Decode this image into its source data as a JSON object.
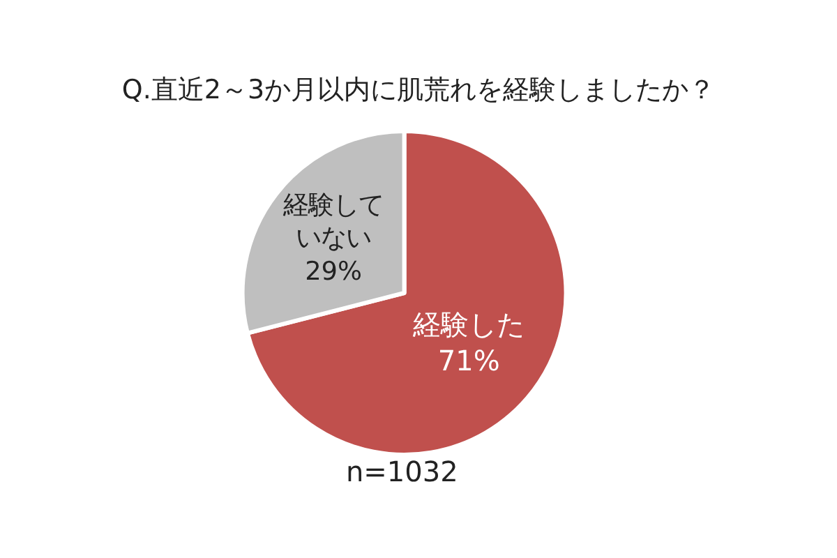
{
  "chart_data": {
    "type": "pie",
    "title": "Q.直近2～3か月以内に肌荒れを経験しましたか？",
    "categories": [
      "経験した",
      "経験していない"
    ],
    "values": [
      71,
      29
    ],
    "colors": [
      "#c0504d",
      "#bfbfbf"
    ],
    "value_labels": [
      "71%",
      "29%"
    ],
    "legend": false,
    "annotations": [
      "n=1032"
    ]
  }
}
